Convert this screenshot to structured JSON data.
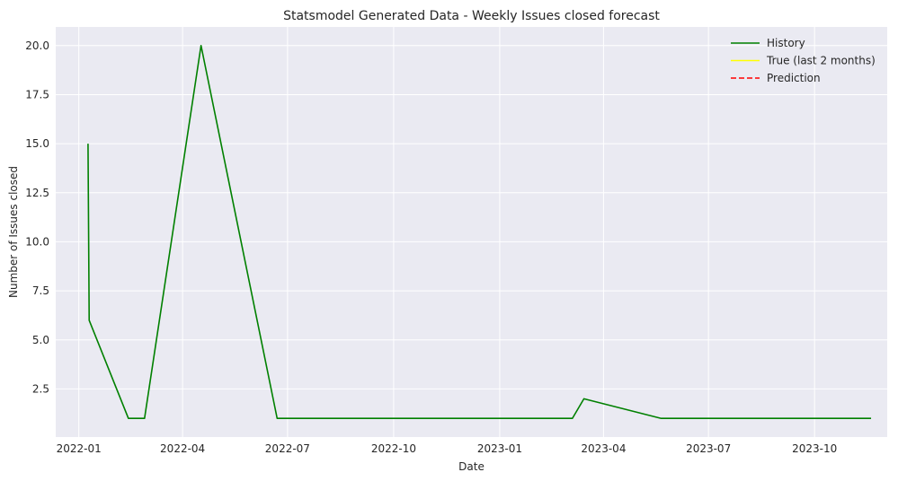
{
  "chart_data": {
    "type": "line",
    "title": "Statsmodel Generated Data - Weekly Issues closed forecast",
    "xlabel": "Date",
    "ylabel": "Number of Issues closed",
    "x_tick_labels": [
      "2022-01",
      "2022-04",
      "2022-07",
      "2022-10",
      "2023-01",
      "2023-04",
      "2023-07",
      "2023-10"
    ],
    "x_tick_dates": [
      "2022-01-01",
      "2022-04-01",
      "2022-07-01",
      "2022-10-01",
      "2023-01-01",
      "2023-04-01",
      "2023-07-01",
      "2023-10-01"
    ],
    "y_tick_labels": [
      "2.5",
      "5.0",
      "7.5",
      "10.0",
      "12.5",
      "15.0",
      "17.5",
      "20.0"
    ],
    "y_tick_values": [
      2.5,
      5.0,
      7.5,
      10.0,
      12.5,
      15.0,
      17.5,
      20.0
    ],
    "xlim": [
      "2021-12-12",
      "2023-12-03"
    ],
    "ylim": [
      0.05,
      20.95
    ],
    "grid": true,
    "legend_position": "top-right",
    "series": [
      {
        "name": "History",
        "color": "#008000",
        "dash": "solid",
        "points": [
          {
            "x": "2022-01-09",
            "y": 15
          },
          {
            "x": "2022-01-10",
            "y": 6
          },
          {
            "x": "2022-02-13",
            "y": 1
          },
          {
            "x": "2022-02-27",
            "y": 1
          },
          {
            "x": "2022-04-17",
            "y": 20
          },
          {
            "x": "2022-06-22",
            "y": 1
          },
          {
            "x": "2023-03-05",
            "y": 1
          },
          {
            "x": "2023-03-15",
            "y": 2
          },
          {
            "x": "2023-05-21",
            "y": 1
          },
          {
            "x": "2023-11-19",
            "y": 1
          }
        ]
      },
      {
        "name": "True (last 2 months)",
        "color": "#ffff00",
        "dash": "solid",
        "points": []
      },
      {
        "name": "Prediction",
        "color": "#ff0000",
        "dash": "dashed",
        "points": []
      }
    ]
  }
}
